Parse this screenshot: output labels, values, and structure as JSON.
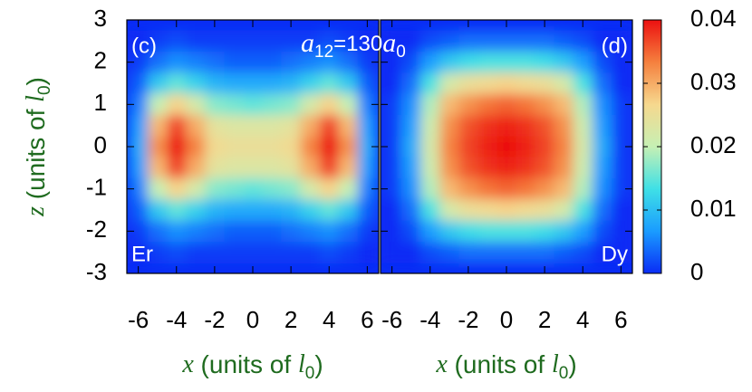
{
  "chart_data": [
    {
      "type": "heatmap",
      "title": "(c)",
      "label": "Er",
      "annotation": [
        "a",
        "12",
        "=130",
        "a",
        "0"
      ],
      "ylabel": [
        "z",
        " (units of ",
        "l",
        "0",
        ")"
      ],
      "xlabel": [
        "x",
        " (units of ",
        "l",
        "0",
        ")"
      ],
      "x": [
        -6,
        -5,
        -4,
        -3,
        -2,
        -1,
        0,
        1,
        2,
        3,
        4,
        5,
        6
      ],
      "z": [
        2.5,
        2,
        1.5,
        1,
        0.5,
        0,
        -0.5,
        -1,
        -1.5,
        -2,
        -2.5
      ],
      "values": [
        [
          0,
          0.001,
          0.002,
          0.001,
          0.001,
          0.001,
          0.001,
          0.001,
          0.001,
          0.001,
          0.002,
          0.001,
          0
        ],
        [
          0.001,
          0.004,
          0.006,
          0.005,
          0.004,
          0.003,
          0.003,
          0.003,
          0.004,
          0.005,
          0.006,
          0.004,
          0.001
        ],
        [
          0.003,
          0.011,
          0.015,
          0.012,
          0.009,
          0.008,
          0.008,
          0.008,
          0.009,
          0.012,
          0.015,
          0.011,
          0.003
        ],
        [
          0.005,
          0.02,
          0.027,
          0.022,
          0.017,
          0.016,
          0.015,
          0.016,
          0.017,
          0.022,
          0.027,
          0.02,
          0.005
        ],
        [
          0.007,
          0.029,
          0.037,
          0.03,
          0.024,
          0.023,
          0.023,
          0.023,
          0.024,
          0.03,
          0.037,
          0.029,
          0.007
        ],
        [
          0.008,
          0.032,
          0.04,
          0.033,
          0.026,
          0.025,
          0.025,
          0.025,
          0.026,
          0.033,
          0.04,
          0.032,
          0.008
        ],
        [
          0.007,
          0.029,
          0.037,
          0.03,
          0.024,
          0.023,
          0.023,
          0.023,
          0.024,
          0.03,
          0.037,
          0.029,
          0.007
        ],
        [
          0.005,
          0.02,
          0.027,
          0.022,
          0.017,
          0.016,
          0.015,
          0.016,
          0.017,
          0.022,
          0.027,
          0.02,
          0.005
        ],
        [
          0.003,
          0.011,
          0.015,
          0.012,
          0.009,
          0.008,
          0.008,
          0.008,
          0.009,
          0.012,
          0.015,
          0.011,
          0.003
        ],
        [
          0.001,
          0.004,
          0.006,
          0.005,
          0.004,
          0.003,
          0.003,
          0.003,
          0.004,
          0.005,
          0.006,
          0.004,
          0.001
        ],
        [
          0,
          0.001,
          0.002,
          0.001,
          0.001,
          0.001,
          0.001,
          0.001,
          0.001,
          0.001,
          0.002,
          0.001,
          0
        ]
      ],
      "xlim": [
        -6.6,
        6.6
      ],
      "ylim": [
        -3,
        3
      ],
      "xticks": [
        -6,
        -4,
        -2,
        0,
        2,
        4,
        6
      ],
      "yticks": [
        -3,
        -2,
        -1,
        0,
        1,
        2,
        3
      ]
    },
    {
      "type": "heatmap",
      "title": "(d)",
      "label": "Dy",
      "xlabel": [
        "x",
        " (units of ",
        "l",
        "0",
        ")"
      ],
      "x": [
        -6,
        -5,
        -4,
        -3,
        -2,
        -1,
        0,
        1,
        2,
        3,
        4,
        5,
        6
      ],
      "z": [
        2.5,
        2,
        1.5,
        1,
        0.5,
        0,
        -0.5,
        -1,
        -1.5,
        -2,
        -2.5
      ],
      "values": [
        [
          0,
          0,
          0.002,
          0.003,
          0.004,
          0.004,
          0.004,
          0.004,
          0.004,
          0.003,
          0.002,
          0,
          0
        ],
        [
          0,
          0.002,
          0.007,
          0.011,
          0.013,
          0.014,
          0.014,
          0.014,
          0.013,
          0.011,
          0.007,
          0.002,
          0
        ],
        [
          0,
          0.004,
          0.014,
          0.022,
          0.025,
          0.026,
          0.027,
          0.026,
          0.025,
          0.022,
          0.014,
          0.004,
          0
        ],
        [
          0.001,
          0.006,
          0.019,
          0.029,
          0.032,
          0.034,
          0.035,
          0.034,
          0.032,
          0.029,
          0.019,
          0.006,
          0.001
        ],
        [
          0.001,
          0.007,
          0.021,
          0.032,
          0.036,
          0.038,
          0.039,
          0.038,
          0.036,
          0.032,
          0.021,
          0.007,
          0.001
        ],
        [
          0.001,
          0.008,
          0.022,
          0.033,
          0.037,
          0.039,
          0.04,
          0.039,
          0.037,
          0.033,
          0.022,
          0.008,
          0.001
        ],
        [
          0.001,
          0.007,
          0.021,
          0.032,
          0.036,
          0.038,
          0.039,
          0.038,
          0.036,
          0.032,
          0.021,
          0.007,
          0.001
        ],
        [
          0.001,
          0.006,
          0.019,
          0.029,
          0.032,
          0.034,
          0.035,
          0.034,
          0.032,
          0.029,
          0.019,
          0.006,
          0.001
        ],
        [
          0,
          0.004,
          0.014,
          0.022,
          0.025,
          0.026,
          0.027,
          0.026,
          0.025,
          0.022,
          0.014,
          0.004,
          0
        ],
        [
          0,
          0.002,
          0.007,
          0.011,
          0.013,
          0.014,
          0.014,
          0.014,
          0.013,
          0.011,
          0.007,
          0.002,
          0
        ],
        [
          0,
          0,
          0.002,
          0.003,
          0.004,
          0.004,
          0.004,
          0.004,
          0.004,
          0.003,
          0.002,
          0,
          0
        ]
      ],
      "xlim": [
        -6.6,
        6.6
      ],
      "ylim": [
        -3,
        3
      ],
      "xticks": [
        -6,
        -4,
        -2,
        0,
        2,
        4,
        6
      ],
      "yticks": [
        -3,
        -2,
        -1,
        0,
        1,
        2,
        3
      ],
      "colorbar": {
        "lim": [
          0,
          0.04
        ],
        "ticks": [
          0,
          0.01,
          0.02,
          0.03,
          0.04
        ],
        "colormap": [
          "#0a2cf5",
          "#1a9cff",
          "#3fe0e6",
          "#c6f0b4",
          "#f6d88e",
          "#f5803e",
          "#ec1010"
        ]
      }
    }
  ]
}
